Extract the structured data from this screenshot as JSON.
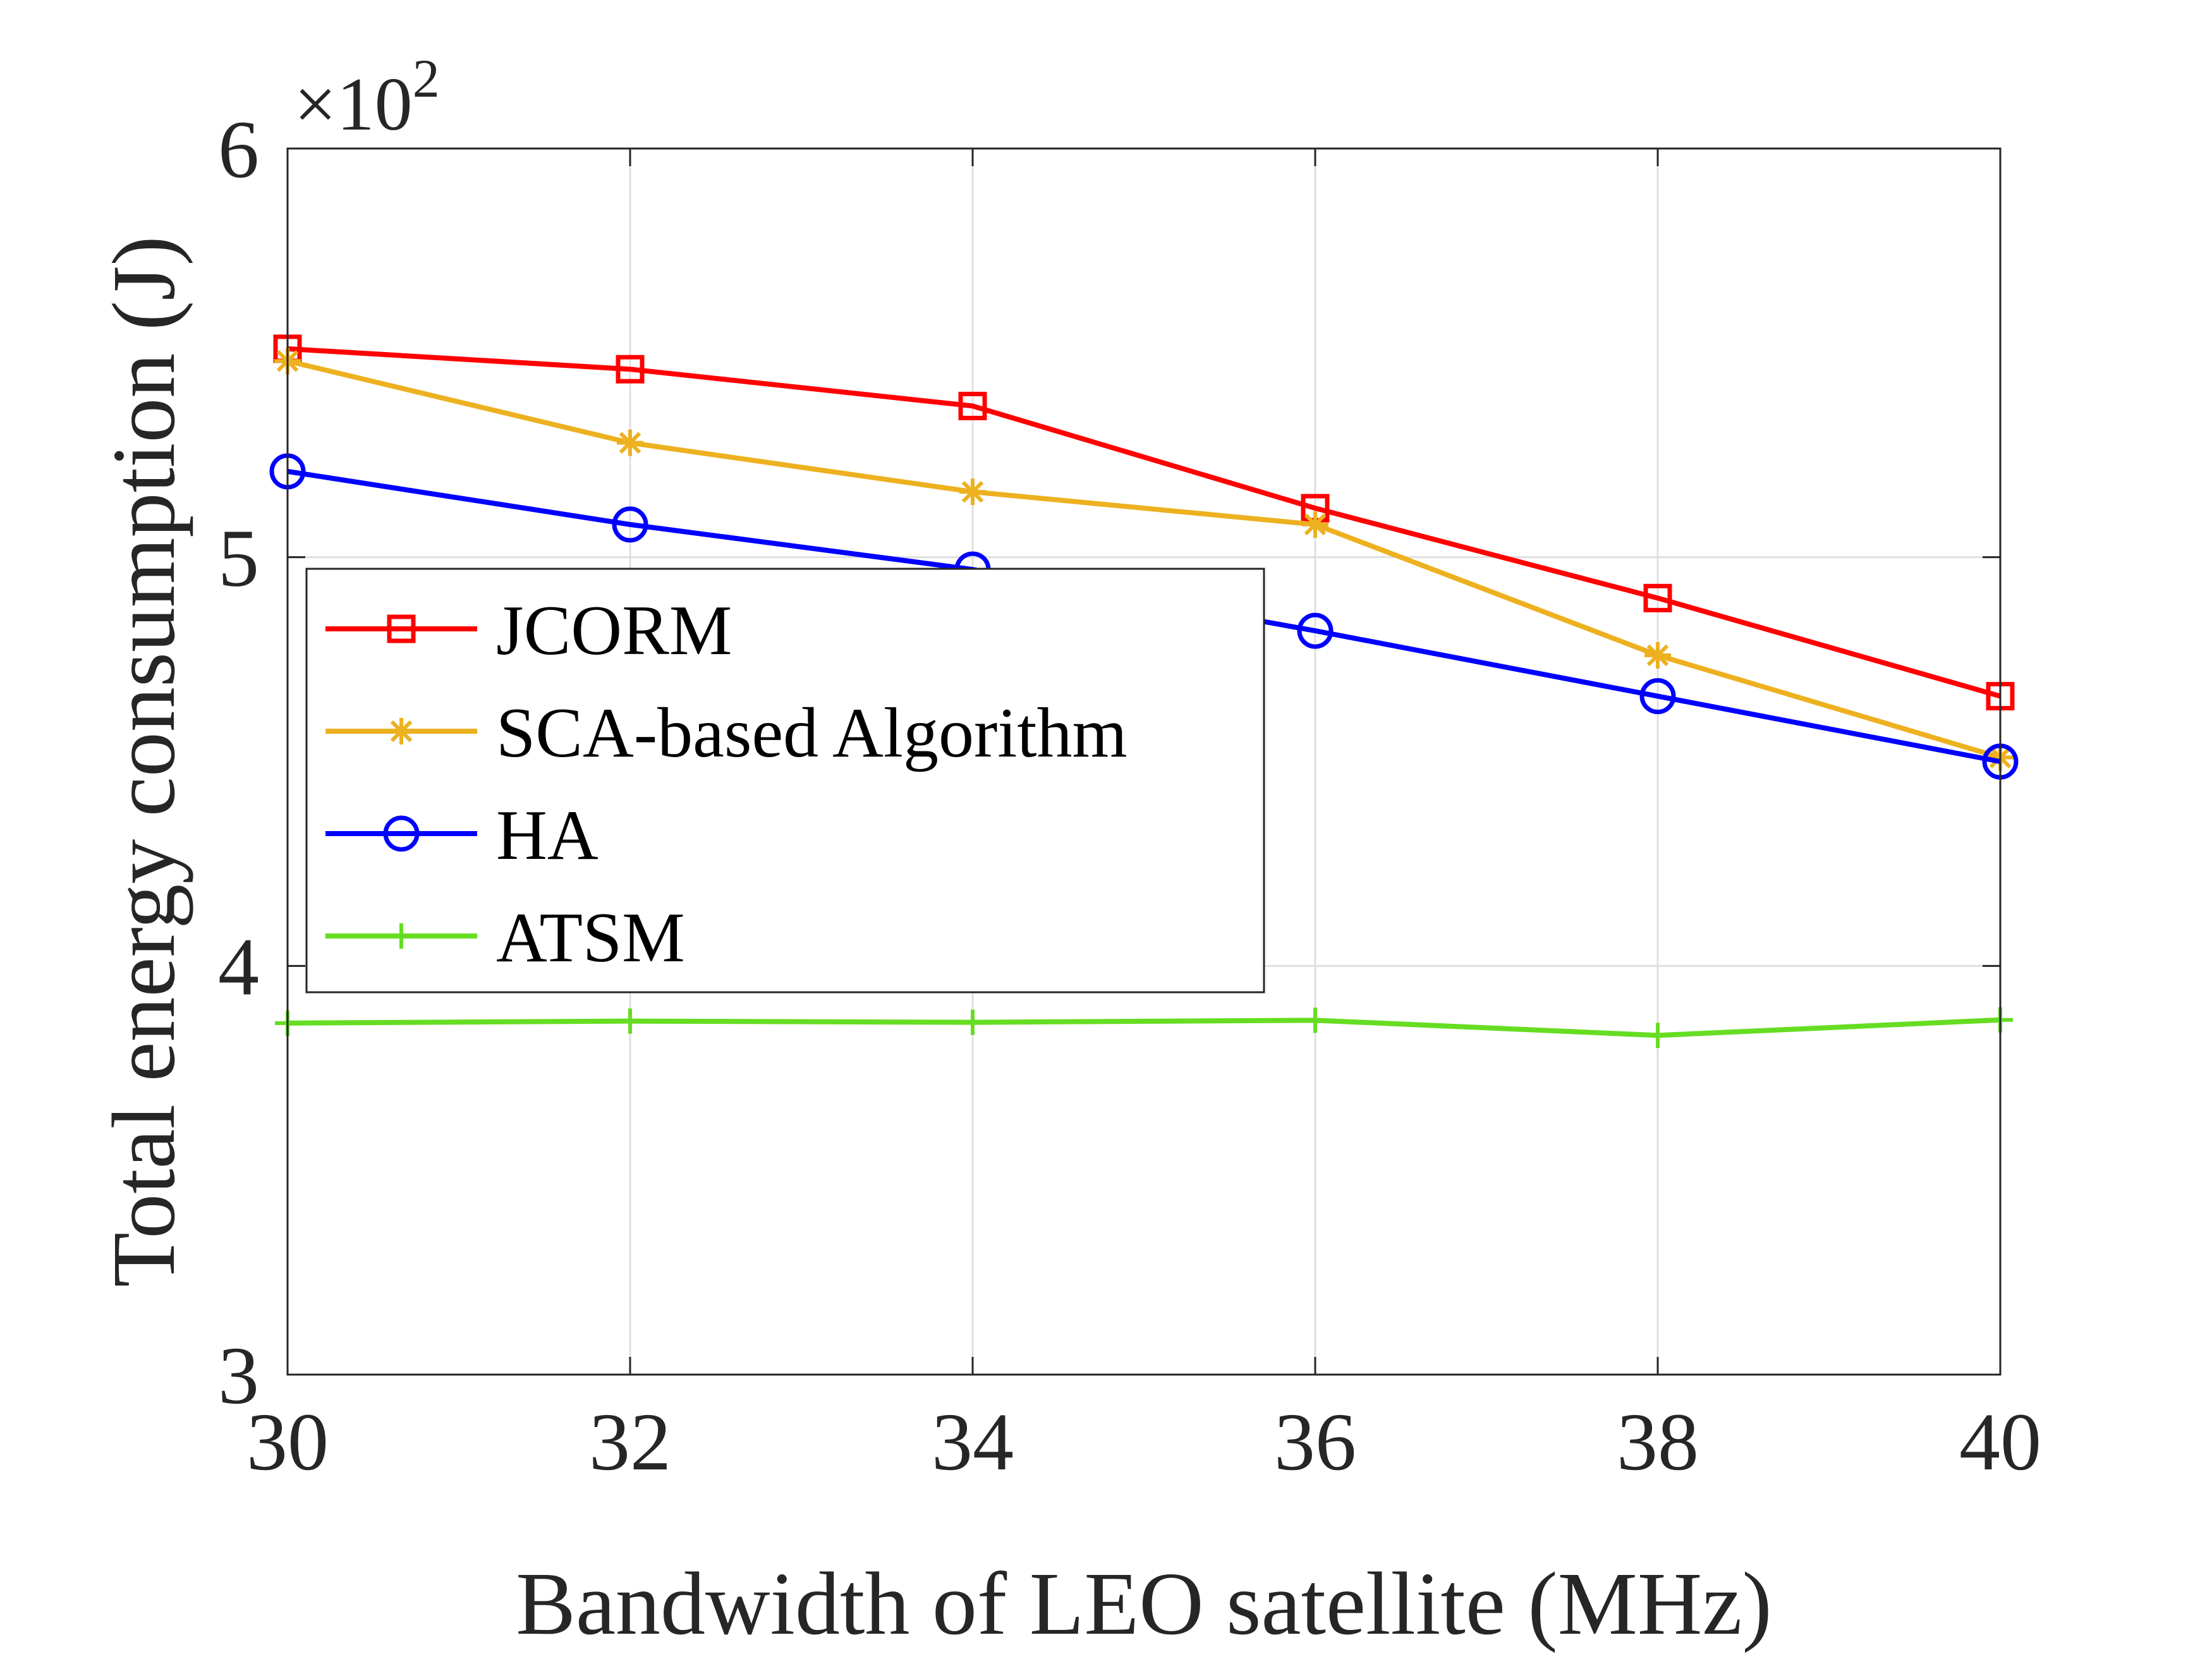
{
  "chart_data": {
    "type": "line",
    "xlabel": "Bandwidth of LEO satellite (MHz)",
    "ylabel": "Total energy consumption (J)",
    "y_exponent": {
      "prefix": "×10",
      "power": "2"
    },
    "x": [
      30,
      32,
      34,
      36,
      38,
      40
    ],
    "xlim": [
      30,
      40
    ],
    "ylim": [
      3,
      6
    ],
    "xticks": [
      30,
      32,
      34,
      36,
      38,
      40
    ],
    "yticks": [
      3,
      4,
      5,
      6
    ],
    "grid": true,
    "legend_location": "middle-left",
    "series": [
      {
        "name": "JCORM",
        "color": "#FF0000",
        "marker": "square",
        "values": [
          5.51,
          5.46,
          5.37,
          5.12,
          4.9,
          4.66
        ]
      },
      {
        "name": "SCA-based Algorithm",
        "color": "#EDB120",
        "marker": "asterisk",
        "values": [
          5.48,
          5.28,
          5.16,
          5.08,
          4.76,
          4.51
        ]
      },
      {
        "name": "HA",
        "color": "#0000FF",
        "marker": "circle",
        "values": [
          5.21,
          5.08,
          4.97,
          4.82,
          4.66,
          4.5
        ]
      },
      {
        "name": "ATSM",
        "color": "#66DD22",
        "marker": "plus",
        "values": [
          3.86,
          3.865,
          3.862,
          3.867,
          3.83,
          3.868
        ]
      }
    ]
  }
}
